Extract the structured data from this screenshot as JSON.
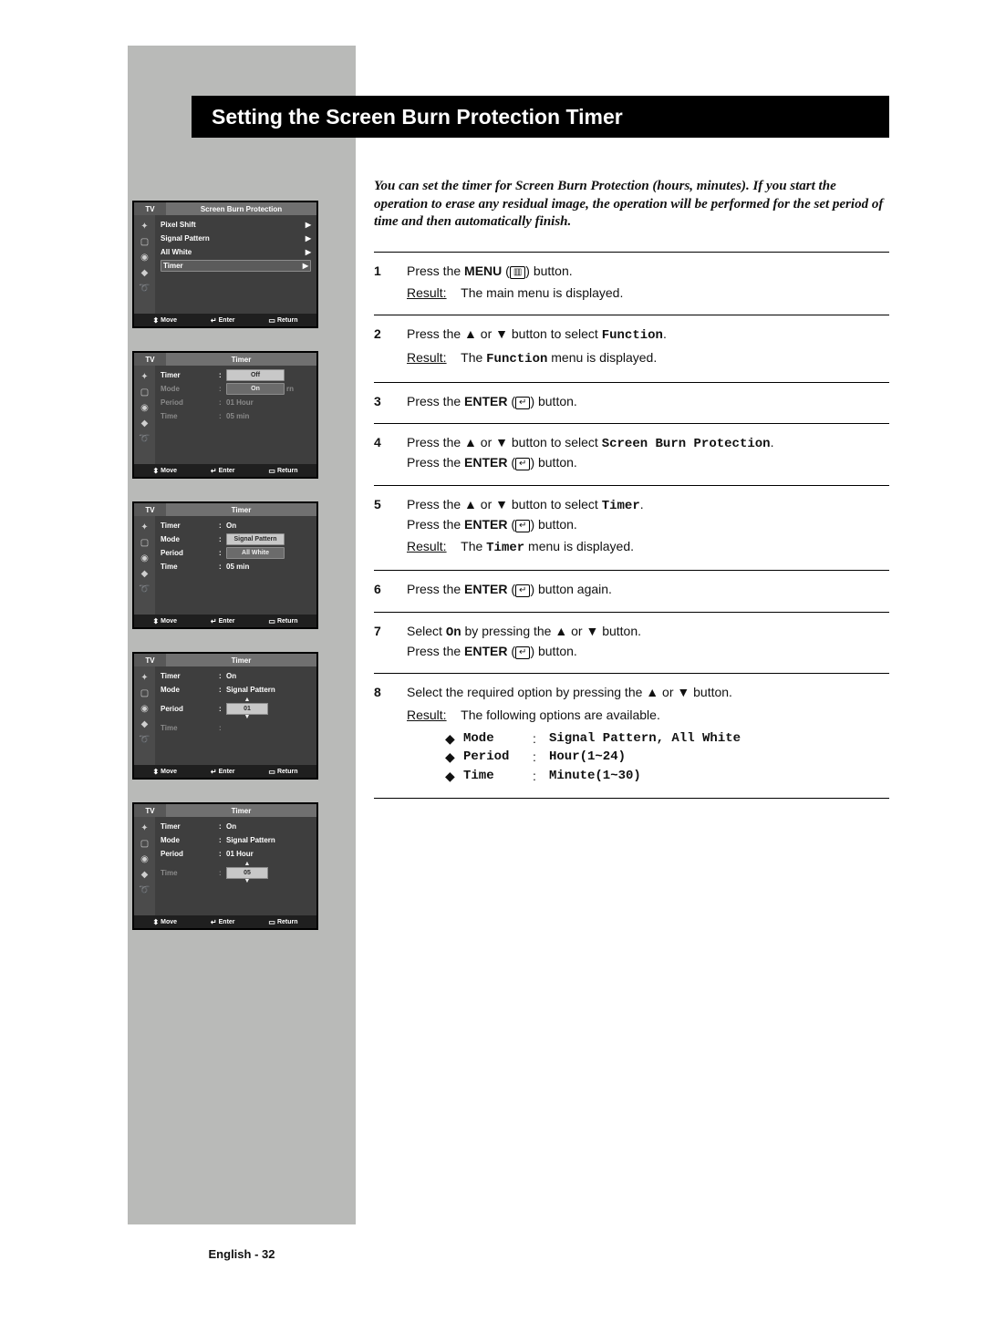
{
  "colors": {
    "page_bg": "#ffffff",
    "sidebar_bg": "#b9bab8",
    "title_bg": "#000000",
    "title_fg": "#ffffff",
    "osd_border": "#000000",
    "osd_bg_dark": "#3e3e3e",
    "osd_header_bg": "#707070",
    "osd_text": "#d0d0d0",
    "osd_text_bright": "#ffffff",
    "osd_highlight": "#c8c8c8",
    "osd_footer": "#1f1f1f",
    "text_color": "#111111",
    "rule": "#000000"
  },
  "title": "Setting the Screen Burn Protection Timer",
  "footer": "English - 32",
  "intro": "You can set the timer for Screen Burn Protection (hours, minutes). If you start the operation to erase any residual image, the operation will be performed for the set period of time and then automatically finish.",
  "osd_common": {
    "tv": "TV",
    "footer_move": "Move",
    "footer_enter": "Enter",
    "footer_return": "Return",
    "icons": [
      "✦",
      "▢",
      "◉",
      "◆",
      "➰"
    ]
  },
  "osd": [
    {
      "panel_title": "Screen Burn Protection",
      "type": "list_arrows",
      "rows": [
        {
          "label": "Pixel Shift",
          "arrow": true,
          "bright": true
        },
        {
          "label": "Signal Pattern",
          "arrow": true,
          "bright": true
        },
        {
          "label": "All White",
          "arrow": true,
          "bright": true
        },
        {
          "label": "Timer",
          "arrow": true,
          "bright": true,
          "selected": true
        }
      ]
    },
    {
      "panel_title": "Timer",
      "type": "values_pills",
      "rows": [
        {
          "label": "Timer",
          "colon": true,
          "pill": "Off",
          "bright": true
        },
        {
          "label": "Mode",
          "colon": true,
          "pill": "On",
          "pill_dark": true,
          "trail": "rn",
          "dim": true
        },
        {
          "label": "Period",
          "colon": true,
          "value": "01 Hour",
          "dim": true
        },
        {
          "label": "Time",
          "colon": true,
          "value": "05 min",
          "dim": true
        }
      ]
    },
    {
      "panel_title": "Timer",
      "type": "values_pills",
      "rows": [
        {
          "label": "Timer",
          "colon": true,
          "value": "On",
          "bright": true
        },
        {
          "label": "Mode",
          "colon": true,
          "pill": "Signal Pattern",
          "bright": true
        },
        {
          "label": "Period",
          "colon": true,
          "pill": "All White",
          "pill_dark": true,
          "bright": true
        },
        {
          "label": "Time",
          "colon": true,
          "value": "05 min",
          "bright": true
        }
      ]
    },
    {
      "panel_title": "Timer",
      "type": "values_spinner",
      "rows": [
        {
          "label": "Timer",
          "colon": true,
          "value": "On",
          "bright": true
        },
        {
          "label": "Mode",
          "colon": true,
          "value": "Signal Pattern",
          "bright": true
        },
        {
          "label": "Period",
          "colon": true,
          "spinner": "01",
          "bright": true
        },
        {
          "label": "Time",
          "colon": true,
          "value": "",
          "dim": true
        }
      ]
    },
    {
      "panel_title": "Timer",
      "type": "values_spinner",
      "rows": [
        {
          "label": "Timer",
          "colon": true,
          "value": "On",
          "bright": true
        },
        {
          "label": "Mode",
          "colon": true,
          "value": "Signal Pattern",
          "bright": true
        },
        {
          "label": "Period",
          "colon": true,
          "value": "01 Hour",
          "bright": true
        },
        {
          "label": "Time",
          "colon": true,
          "spinner": "05",
          "dim": true
        }
      ]
    }
  ],
  "steps": [
    {
      "n": "1",
      "lines": [
        {
          "parts": [
            {
              "t": "Press the "
            },
            {
              "t": "MENU",
              "b": true
            },
            {
              "t": " ("
            },
            {
              "icon": "▥"
            },
            {
              "t": ") button."
            }
          ]
        },
        {
          "result": "The main menu is displayed."
        }
      ]
    },
    {
      "n": "2",
      "lines": [
        {
          "parts": [
            {
              "t": "Press the "
            },
            {
              "sym": "▲"
            },
            {
              "t": " or "
            },
            {
              "sym": "▼"
            },
            {
              "t": " button to select "
            },
            {
              "t": "Function",
              "mono": true
            },
            {
              "t": "."
            }
          ]
        },
        {
          "result_parts": [
            {
              "t": "The "
            },
            {
              "t": "Function",
              "mono": true
            },
            {
              "t": " menu is displayed."
            }
          ]
        }
      ]
    },
    {
      "n": "3",
      "lines": [
        {
          "parts": [
            {
              "t": "Press the "
            },
            {
              "t": "ENTER",
              "b": true
            },
            {
              "t": " ("
            },
            {
              "icon": "↵"
            },
            {
              "t": ") button."
            }
          ]
        }
      ]
    },
    {
      "n": "4",
      "lines": [
        {
          "parts": [
            {
              "t": "Press the "
            },
            {
              "sym": "▲"
            },
            {
              "t": " or "
            },
            {
              "sym": "▼"
            },
            {
              "t": " button to select "
            },
            {
              "t": "Screen Burn Protection",
              "mono": true
            },
            {
              "t": "."
            }
          ]
        },
        {
          "parts": [
            {
              "t": "Press the "
            },
            {
              "t": "ENTER",
              "b": true
            },
            {
              "t": " ("
            },
            {
              "icon": "↵"
            },
            {
              "t": ") button."
            }
          ]
        }
      ]
    },
    {
      "n": "5",
      "lines": [
        {
          "parts": [
            {
              "t": "Press the "
            },
            {
              "sym": "▲"
            },
            {
              "t": " or "
            },
            {
              "sym": "▼"
            },
            {
              "t": " button to select "
            },
            {
              "t": "Timer",
              "mono": true
            },
            {
              "t": "."
            }
          ]
        },
        {
          "parts": [
            {
              "t": "Press the "
            },
            {
              "t": "ENTER",
              "b": true
            },
            {
              "t": " ("
            },
            {
              "icon": "↵"
            },
            {
              "t": ") button."
            }
          ]
        },
        {
          "result_parts": [
            {
              "t": "The "
            },
            {
              "t": "Timer",
              "mono": true
            },
            {
              "t": " menu is displayed."
            }
          ]
        }
      ]
    },
    {
      "n": "6",
      "lines": [
        {
          "parts": [
            {
              "t": "Press the "
            },
            {
              "t": "ENTER",
              "b": true
            },
            {
              "t": " ("
            },
            {
              "icon": "↵"
            },
            {
              "t": ") button again."
            }
          ]
        }
      ]
    },
    {
      "n": "7",
      "lines": [
        {
          "parts": [
            {
              "t": "Select "
            },
            {
              "t": "On",
              "mono": true
            },
            {
              "t": " by pressing the "
            },
            {
              "sym": "▲"
            },
            {
              "t": " or "
            },
            {
              "sym": "▼"
            },
            {
              "t": " button."
            }
          ]
        },
        {
          "parts": [
            {
              "t": "Press the "
            },
            {
              "t": "ENTER",
              "b": true
            },
            {
              "t": " ("
            },
            {
              "icon": "↵"
            },
            {
              "t": ") button."
            }
          ]
        }
      ]
    },
    {
      "n": "8",
      "lines": [
        {
          "parts": [
            {
              "t": "Select the required option by pressing the "
            },
            {
              "sym": "▲"
            },
            {
              "t": " or "
            },
            {
              "sym": "▼"
            },
            {
              "t": " button."
            }
          ]
        },
        {
          "result": "The following options are available."
        }
      ],
      "bullets": [
        {
          "k": "Mode",
          "v": "Signal Pattern, All White"
        },
        {
          "k": "Period",
          "v": "Hour(1~24)"
        },
        {
          "k": "Time",
          "v": "Minute(1~30)"
        }
      ]
    }
  ],
  "labels": {
    "result": "Result:"
  }
}
